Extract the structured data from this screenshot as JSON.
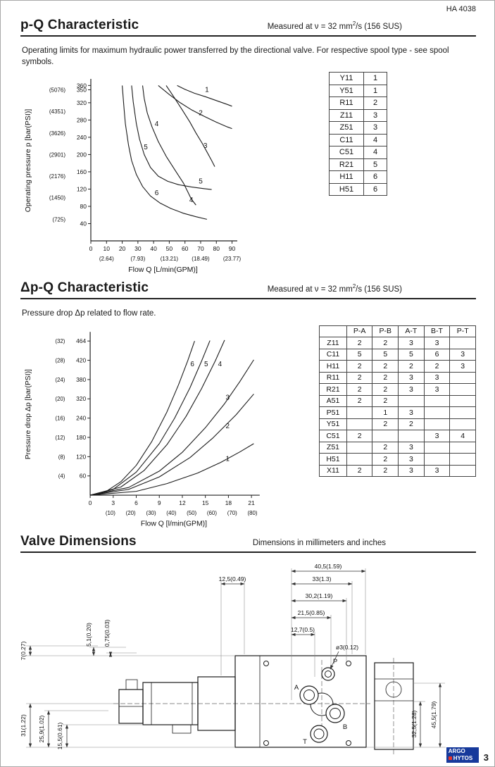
{
  "doc": {
    "number": "HA 4038",
    "page": "3"
  },
  "logo": {
    "line1": "ARGO",
    "line2": "HYTOS"
  },
  "sections": {
    "pq": {
      "title": "p-Q Characteristic",
      "measured_pre": "Measured at ν = 32 mm",
      "measured_sup": "2",
      "measured_post": "/s (156 SUS)",
      "body": "Operating limits for maximum hydraulic power transferred by the directional valve. For respective spool type - see spool symbols.",
      "spool_table": {
        "rows": [
          [
            "Y11",
            "1"
          ],
          [
            "Y51",
            "1"
          ],
          [
            "R11",
            "2"
          ],
          [
            "Z11",
            "3"
          ],
          [
            "Z51",
            "3"
          ],
          [
            "C11",
            "4"
          ],
          [
            "C51",
            "4"
          ],
          [
            "R21",
            "5"
          ],
          [
            "H11",
            "6"
          ],
          [
            "H51",
            "6"
          ]
        ]
      }
    },
    "dpq": {
      "title": "Δp-Q Characteristic",
      "measured_pre": "Measured at ν = 32 mm",
      "measured_sup": "2",
      "measured_post": "/s (156 SUS)",
      "body": "Pressure drop Δp related to flow rate.",
      "drop_table": {
        "headers": [
          "",
          "P-A",
          "P-B",
          "A-T",
          "B-T",
          "P-T"
        ],
        "rows": [
          [
            "Z11",
            "2",
            "2",
            "3",
            "3",
            ""
          ],
          [
            "C11",
            "5",
            "5",
            "5",
            "6",
            "3"
          ],
          [
            "H11",
            "2",
            "2",
            "2",
            "2",
            "3"
          ],
          [
            "R11",
            "2",
            "2",
            "3",
            "3",
            ""
          ],
          [
            "R21",
            "2",
            "2",
            "3",
            "3",
            ""
          ],
          [
            "A51",
            "2",
            "2",
            "",
            "",
            ""
          ],
          [
            "P51",
            "",
            "1",
            "3",
            "",
            ""
          ],
          [
            "Y51",
            "",
            "2",
            "2",
            "",
            ""
          ],
          [
            "C51",
            "2",
            "",
            "",
            "3",
            "4"
          ],
          [
            "Z51",
            "",
            "2",
            "3",
            "",
            ""
          ],
          [
            "H51",
            "",
            "2",
            "3",
            "",
            ""
          ],
          [
            "X11",
            "2",
            "2",
            "3",
            "3",
            ""
          ]
        ]
      }
    },
    "dims": {
      "title": "Valve Dimensions",
      "note": "Dimensions in millimeters and inches",
      "ports": {
        "p": "P",
        "a": "A",
        "b": "B",
        "t": "T"
      },
      "dims_top": [
        "40,5(1.59)",
        "33(1.3)",
        "30,2(1.19)",
        "21,5(0.85)",
        "12,7(0.5)",
        "12,5(0.49)",
        "ø3(0.12)"
      ],
      "dims_left": [
        "7(0.27)",
        "5,1(0.20)",
        "0,75(0.03)",
        "31(1.22)",
        "25,9(1.02)",
        "15,5(0.61)"
      ],
      "dims_right": [
        "32,5(1.28)",
        "45,5(1.79)"
      ]
    }
  },
  "chart_data": [
    {
      "id": "p-q",
      "type": "line",
      "title": "p-Q Characteristic",
      "xlabel": "Flow Q [L/min(GPM)]",
      "ylabel": "Operating pressure p [bar(PSI)]",
      "xlim": [
        0,
        92
      ],
      "ylim": [
        0,
        372
      ],
      "grid": false,
      "x_ticks": [
        {
          "v": 0,
          "label": "0"
        },
        {
          "v": 10,
          "label": "10"
        },
        {
          "v": 20,
          "label": "20"
        },
        {
          "v": 30,
          "label": "30"
        },
        {
          "v": 40,
          "label": "40"
        },
        {
          "v": 50,
          "label": "50"
        },
        {
          "v": 60,
          "label": "60"
        },
        {
          "v": 70,
          "label": "70"
        },
        {
          "v": 80,
          "label": "80"
        },
        {
          "v": 90,
          "label": "90"
        }
      ],
      "x_ticks2": [
        {
          "v": 10,
          "label": "(2.64)"
        },
        {
          "v": 30,
          "label": "(7.93)"
        },
        {
          "v": 50,
          "label": "(13.21)"
        },
        {
          "v": 70,
          "label": "(18.49)"
        },
        {
          "v": 90,
          "label": "(23.77)"
        }
      ],
      "y_ticks": [
        {
          "v": 40,
          "label": "40"
        },
        {
          "v": 80,
          "label": "80"
        },
        {
          "v": 120,
          "label": "120"
        },
        {
          "v": 160,
          "label": "160"
        },
        {
          "v": 200,
          "label": "200"
        },
        {
          "v": 240,
          "label": "240"
        },
        {
          "v": 280,
          "label": "280"
        },
        {
          "v": 320,
          "label": "320"
        },
        {
          "v": 350,
          "label": "350"
        },
        {
          "v": 360,
          "label": "360"
        }
      ],
      "y_ticks2": [
        {
          "v": 50,
          "label": "(725)"
        },
        {
          "v": 100,
          "label": "(1450)"
        },
        {
          "v": 150,
          "label": "(2176)"
        },
        {
          "v": 200,
          "label": "(2901)"
        },
        {
          "v": 250,
          "label": "(3626)"
        },
        {
          "v": 300,
          "label": "(4351)"
        },
        {
          "v": 350,
          "label": "(5076)"
        }
      ],
      "series": [
        {
          "name": "1",
          "points": [
            [
              55,
              360
            ],
            [
              60,
              351
            ],
            [
              66,
              342
            ],
            [
              73,
              334
            ],
            [
              80,
              325
            ],
            [
              87,
              316
            ],
            [
              90,
              312
            ]
          ]
        },
        {
          "name": "2",
          "points": [
            [
              43,
              360
            ],
            [
              50,
              339
            ],
            [
              57,
              320
            ],
            [
              64,
              304
            ],
            [
              72,
              289
            ],
            [
              80,
              275
            ],
            [
              87,
              264
            ],
            [
              90,
              260
            ]
          ]
        },
        {
          "name": "3",
          "points": [
            [
              48,
              360
            ],
            [
              53,
              333
            ],
            [
              58,
              305
            ],
            [
              63,
              276
            ],
            [
              67,
              250
            ],
            [
              71,
              226
            ],
            [
              74,
              206
            ],
            [
              77,
              186
            ],
            [
              79,
              172
            ]
          ]
        },
        {
          "name": "4",
          "points": [
            [
              33,
              360
            ],
            [
              34,
              330
            ],
            [
              36,
              296
            ],
            [
              39,
              264
            ],
            [
              43,
              230
            ],
            [
              48,
              196
            ],
            [
              54,
              162
            ],
            [
              59,
              134
            ],
            [
              62,
              112
            ],
            [
              64,
              97
            ],
            [
              67,
              83
            ]
          ]
        },
        {
          "name": "5",
          "points": [
            [
              26,
              360
            ],
            [
              27,
              322
            ],
            [
              29,
              272
            ],
            [
              31,
              236
            ],
            [
              34,
              200
            ],
            [
              38,
              170
            ],
            [
              43,
              150
            ],
            [
              49,
              138
            ],
            [
              56,
              130
            ],
            [
              64,
              125
            ],
            [
              72,
              121
            ],
            [
              77,
              119
            ]
          ]
        },
        {
          "name": "6",
          "points": [
            [
              20,
              360
            ],
            [
              21,
              314
            ],
            [
              22,
              272
            ],
            [
              24,
              222
            ],
            [
              26,
              186
            ],
            [
              29,
              154
            ],
            [
              33,
              126
            ],
            [
              38,
              104
            ],
            [
              44,
              88
            ],
            [
              51,
              75
            ],
            [
              59,
              64
            ],
            [
              67,
              56
            ],
            [
              74,
              50
            ]
          ]
        }
      ],
      "labels": [
        {
          "text": "1",
          "x": 74,
          "y": 345
        },
        {
          "text": "2",
          "x": 70,
          "y": 291
        },
        {
          "text": "3",
          "x": 73,
          "y": 215
        },
        {
          "text": "4",
          "x": 42,
          "y": 266
        },
        {
          "text": "5",
          "x": 35,
          "y": 212
        },
        {
          "text": "6",
          "x": 42,
          "y": 106
        },
        {
          "text": "5",
          "x": 70,
          "y": 133
        },
        {
          "text": "4",
          "x": 64,
          "y": 90
        }
      ]
    },
    {
      "id": "dp-q",
      "type": "line",
      "title": "Δp-Q Characteristic",
      "xlabel": "Flow Q [l/min(GPM)]",
      "ylabel": "Pressure drop Δp [bar(PSI)]",
      "xlim": [
        0,
        21.8
      ],
      "ylim": [
        0,
        33.6
      ],
      "grid": false,
      "x_ticks": [
        {
          "v": 0,
          "label": "0"
        },
        {
          "v": 3,
          "label": "3"
        },
        {
          "v": 6,
          "label": "6"
        },
        {
          "v": 9,
          "label": "9"
        },
        {
          "v": 12,
          "label": "12"
        },
        {
          "v": 15,
          "label": "15"
        },
        {
          "v": 18,
          "label": "18"
        },
        {
          "v": 21,
          "label": "21"
        }
      ],
      "x_ticks2": [
        {
          "v": 2.64,
          "label": "(10)"
        },
        {
          "v": 5.28,
          "label": "(20)"
        },
        {
          "v": 7.93,
          "label": "(30)"
        },
        {
          "v": 10.57,
          "label": "(40)"
        },
        {
          "v": 13.21,
          "label": "(50)"
        },
        {
          "v": 15.85,
          "label": "(60)"
        },
        {
          "v": 18.49,
          "label": "(70)"
        },
        {
          "v": 21.13,
          "label": "(80)"
        }
      ],
      "y_ticks": [
        {
          "v": 4,
          "label": "60"
        },
        {
          "v": 8,
          "label": "120"
        },
        {
          "v": 12,
          "label": "180"
        },
        {
          "v": 16,
          "label": "240"
        },
        {
          "v": 20,
          "label": "320"
        },
        {
          "v": 24,
          "label": "380"
        },
        {
          "v": 28,
          "label": "420"
        },
        {
          "v": 32,
          "label": "464"
        }
      ],
      "y_ticks2": [
        {
          "v": 4,
          "label": "(4)"
        },
        {
          "v": 8,
          "label": "(8)"
        },
        {
          "v": 12,
          "label": "(12)"
        },
        {
          "v": 16,
          "label": "(16)"
        },
        {
          "v": 20,
          "label": "(20)"
        },
        {
          "v": 24,
          "label": "(24)"
        },
        {
          "v": 28,
          "label": "(28)"
        },
        {
          "v": 32,
          "label": "(32)"
        }
      ],
      "series": [
        {
          "name": "1",
          "points": [
            [
              0,
              0
            ],
            [
              6,
              0.8
            ],
            [
              10,
              2.4
            ],
            [
              14,
              4.6
            ],
            [
              17,
              6.8
            ],
            [
              19.5,
              9.0
            ],
            [
              21.3,
              10.7
            ]
          ]
        },
        {
          "name": "2",
          "points": [
            [
              0,
              0
            ],
            [
              5,
              1.2
            ],
            [
              9,
              3.8
            ],
            [
              13,
              7.8
            ],
            [
              16,
              11.9
            ],
            [
              19,
              16.7
            ],
            [
              21.3,
              21.0
            ]
          ]
        },
        {
          "name": "3",
          "points": [
            [
              0,
              0
            ],
            [
              5,
              1.6
            ],
            [
              9,
              5.0
            ],
            [
              12,
              8.9
            ],
            [
              15,
              14.0
            ],
            [
              17.5,
              19.0
            ],
            [
              19.5,
              23.6
            ],
            [
              21.3,
              28.1
            ]
          ]
        },
        {
          "name": "4",
          "points": [
            [
              0,
              0
            ],
            [
              4,
              1.7
            ],
            [
              7,
              5.1
            ],
            [
              10,
              10.5
            ],
            [
              12.5,
              16.4
            ],
            [
              14.5,
              22.1
            ],
            [
              16.3,
              27.9
            ],
            [
              17.5,
              32.2
            ]
          ]
        },
        {
          "name": "5",
          "points": [
            [
              0,
              0
            ],
            [
              3,
              1.2
            ],
            [
              6,
              4.8
            ],
            [
              9,
              10.7
            ],
            [
              11,
              16.0
            ],
            [
              13,
              22.3
            ],
            [
              14.5,
              27.8
            ],
            [
              15.6,
              32.1
            ]
          ]
        },
        {
          "name": "6",
          "points": [
            [
              0,
              0
            ],
            [
              2,
              0.7
            ],
            [
              4,
              2.8
            ],
            [
              6,
              6.2
            ],
            [
              8,
              11.1
            ],
            [
              10,
              17.3
            ],
            [
              11.5,
              22.9
            ],
            [
              12.7,
              27.9
            ],
            [
              13.6,
              32.0
            ]
          ]
        }
      ],
      "labels": [
        {
          "text": "6",
          "x": 13.3,
          "y": 26.8
        },
        {
          "text": "5",
          "x": 15.1,
          "y": 26.8
        },
        {
          "text": "4",
          "x": 16.9,
          "y": 26.8
        },
        {
          "text": "3",
          "x": 17.9,
          "y": 19.8
        },
        {
          "text": "2",
          "x": 17.9,
          "y": 13.9
        },
        {
          "text": "1",
          "x": 17.9,
          "y": 7.1
        }
      ]
    }
  ]
}
